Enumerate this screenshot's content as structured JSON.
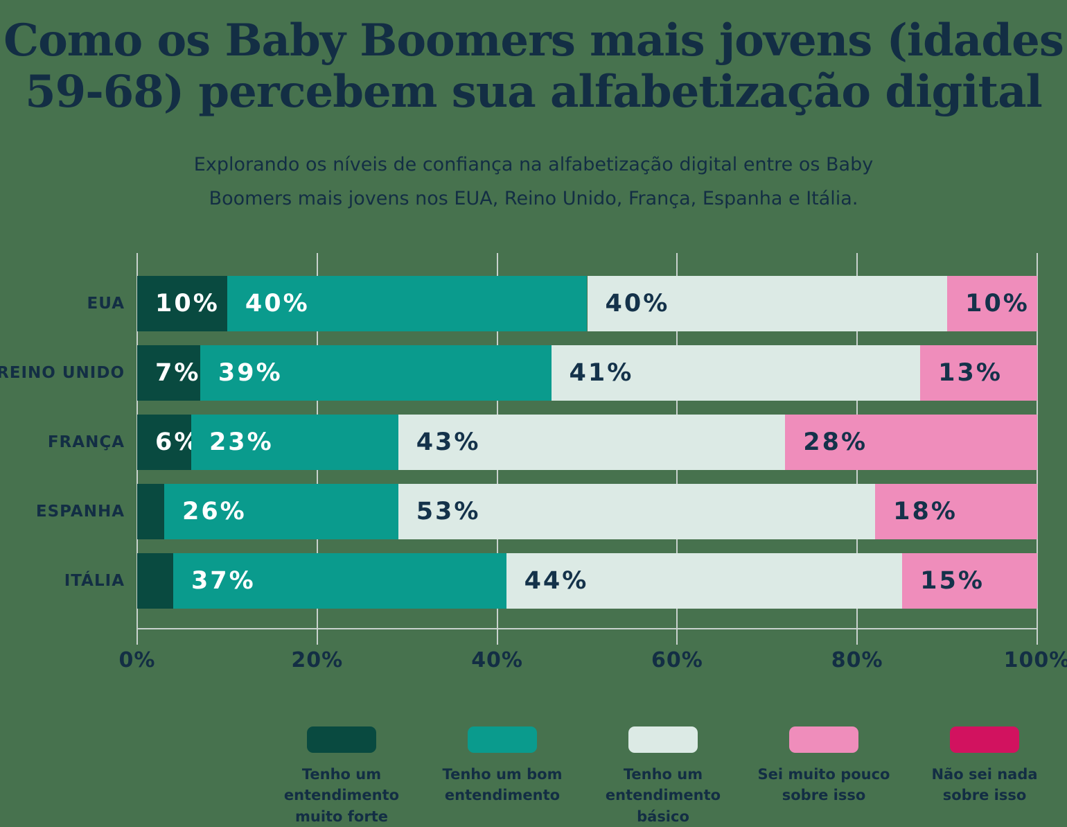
{
  "title": {
    "line1": "Como os Baby Boomers mais jovens (idades",
    "line2": "59-68) percebem sua alfabetização digital"
  },
  "subtitle": {
    "line1": "Explorando os níveis de confiança na alfabetização digital entre os Baby",
    "line2": "Boomers mais jovens nos EUA, Reino Unido, França, Espanha e Itália."
  },
  "colors": {
    "background": "#47724e",
    "text_dark": "#132e44",
    "gridline": "#c9d2ce"
  },
  "chart_data": {
    "type": "bar",
    "orientation": "horizontal-stacked",
    "title": "Como os Baby Boomers mais jovens (idades 59-68) percebem sua alfabetização digital",
    "categories": [
      "EUA",
      "REINO UNIDO",
      "FRANÇA",
      "ESPANHA",
      "ITÁLIA"
    ],
    "series": [
      {
        "name": "Tenho um entendimento muito forte",
        "name_lines": [
          "Tenho um entendimento",
          "muito forte"
        ],
        "color": "#094a40",
        "label_color": "#ffffff",
        "values": [
          10,
          7,
          6,
          3,
          4
        ]
      },
      {
        "name": "Tenho um bom entendimento",
        "name_lines": [
          "Tenho um bom",
          "entendimento"
        ],
        "color": "#0a9b8d",
        "label_color": "#ffffff",
        "values": [
          40,
          39,
          23,
          26,
          37
        ]
      },
      {
        "name": "Tenho um entendimento básico",
        "name_lines": [
          "Tenho um",
          "entendimento básico"
        ],
        "color": "#dceae5",
        "label_color": "#14324a",
        "values": [
          40,
          41,
          43,
          53,
          44
        ]
      },
      {
        "name": "Sei muito pouco sobre isso",
        "name_lines": [
          "Sei muito pouco",
          "sobre isso"
        ],
        "color": "#ef8dbb",
        "label_color": "#14324a",
        "values": [
          10,
          13,
          28,
          18,
          15
        ]
      },
      {
        "name": "Não sei nada sobre isso",
        "name_lines": [
          "Não sei nada",
          "sobre isso"
        ],
        "color": "#d2125f",
        "label_color": "#ffffff",
        "values": [
          0,
          0,
          0,
          0,
          0
        ]
      }
    ],
    "x_ticks": [
      "0%",
      "20%",
      "40%",
      "60%",
      "80%",
      "100%"
    ],
    "xlim": [
      0,
      100
    ],
    "value_suffix": "%",
    "label_min_value": 5,
    "grid": true,
    "legend_position": "bottom"
  }
}
